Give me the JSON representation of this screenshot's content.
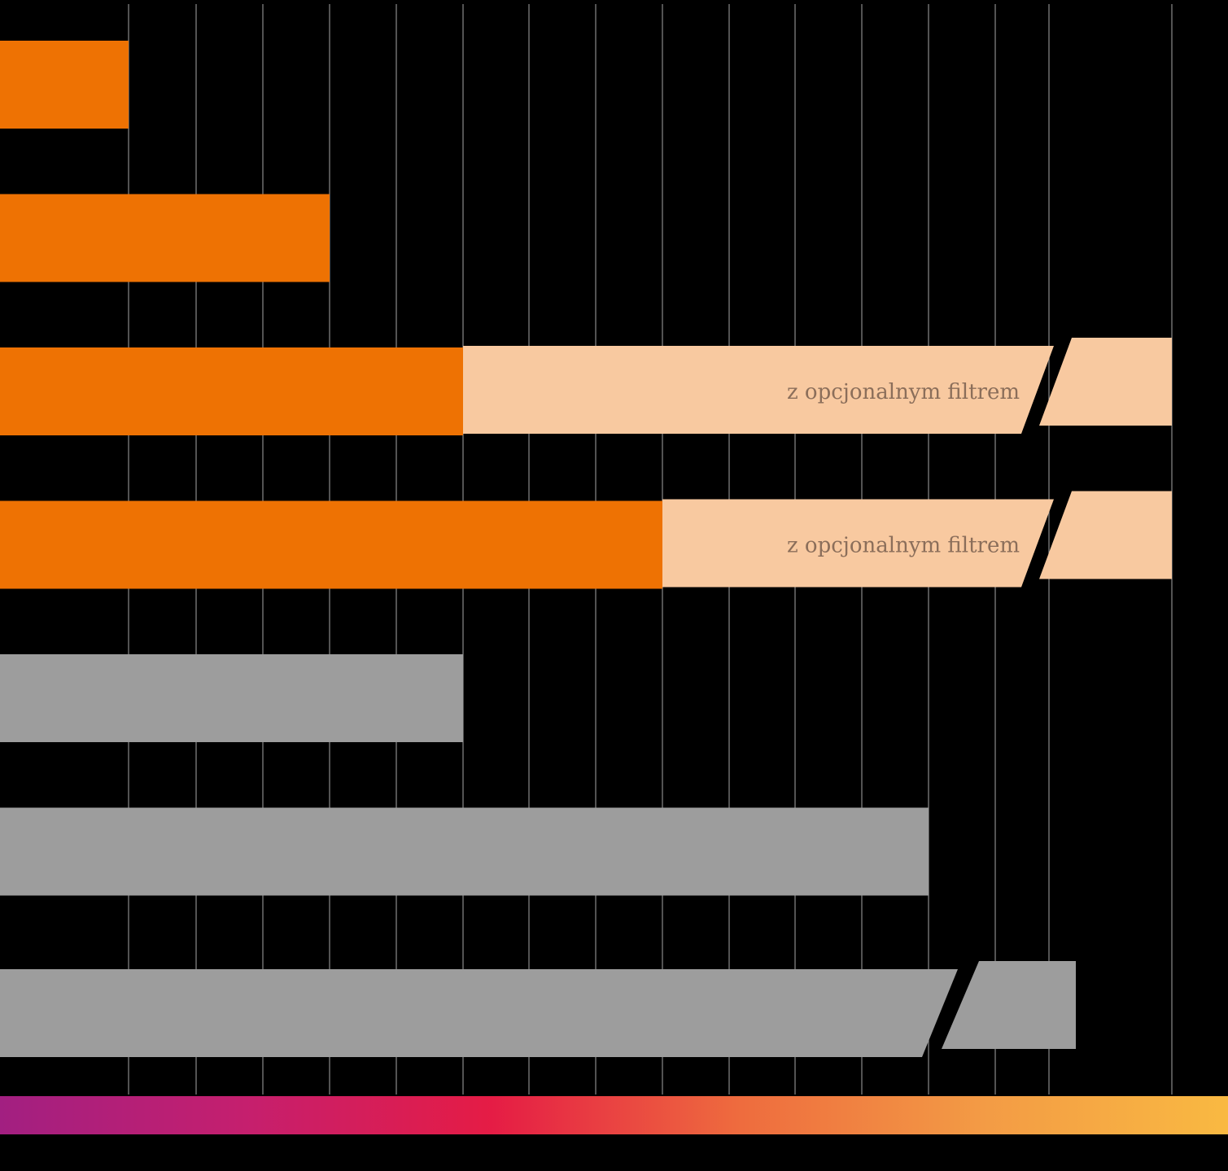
{
  "colors": {
    "background": "#000000",
    "gridline": "#8a8a8a",
    "orange": "#EE7203",
    "light_orange": "#F8C9A0",
    "grey": "#9D9D9D",
    "label_text": "#8B6E5A",
    "gradient": [
      "#A21F81",
      "#C51F6E",
      "#E51C45",
      "#EE6B3E",
      "#F39B45",
      "#F9B942"
    ]
  },
  "chart_data": {
    "type": "bar",
    "orientation": "horizontal",
    "title": "",
    "xlabel": "",
    "ylabel": "",
    "grid": true,
    "xlim": [
      0,
      17.5
    ],
    "gridlines": [
      1.5,
      2,
      2.5,
      3,
      3.5,
      4,
      4.5,
      5,
      5.5,
      6,
      6.5,
      7,
      7.5,
      8,
      9,
      11.5
    ],
    "note": "",
    "bars": [
      {
        "value": 1.5,
        "color": "orange"
      },
      {
        "value": 3,
        "color": "orange"
      },
      {
        "value": 4,
        "color": "orange",
        "extension": {
          "value": 17.5,
          "label": "z opcjonalnym filtrem",
          "broken_axis": true
        }
      },
      {
        "value": 5.5,
        "color": "orange",
        "extension": {
          "value": 17.5,
          "label": "z opcjonalnym filtrem",
          "broken_axis": true
        }
      },
      {
        "value": 4,
        "color": "grey"
      },
      {
        "value": 7.5,
        "color": "grey"
      },
      {
        "value": 10,
        "color": "grey",
        "broken_axis": true
      }
    ]
  }
}
